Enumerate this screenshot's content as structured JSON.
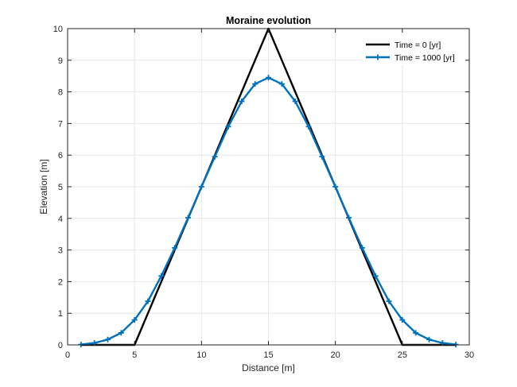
{
  "chart_data": {
    "type": "line",
    "title": "Moraine evolution",
    "xlabel": "Distance [m]",
    "ylabel": "Elevation [m]",
    "xlim": [
      0,
      30
    ],
    "ylim": [
      0,
      10
    ],
    "xticks": [
      0,
      5,
      10,
      15,
      20,
      25,
      30
    ],
    "yticks": [
      0,
      1,
      2,
      3,
      4,
      5,
      6,
      7,
      8,
      9,
      10
    ],
    "grid": true,
    "legend_placement": "top-right",
    "series": [
      {
        "name": "Time = 0 [yr]",
        "color": "#000000",
        "marker": "none",
        "x": [
          1,
          2,
          3,
          4,
          5,
          6,
          7,
          8,
          9,
          10,
          11,
          12,
          13,
          14,
          15,
          16,
          17,
          18,
          19,
          20,
          21,
          22,
          23,
          24,
          25,
          26,
          27,
          28,
          29
        ],
        "y": [
          0,
          0,
          0,
          0,
          0,
          1,
          2,
          3,
          4,
          5,
          6,
          7,
          8,
          9,
          10,
          9,
          8,
          7,
          6,
          5,
          4,
          3,
          2,
          1,
          0,
          0,
          0,
          0,
          0
        ]
      },
      {
        "name": "Time = 1000 [yr]",
        "color": "#0072BD",
        "marker": "plus",
        "x": [
          1,
          2,
          3,
          4,
          5,
          6,
          7,
          8,
          9,
          10,
          11,
          12,
          13,
          14,
          15,
          16,
          17,
          18,
          19,
          20,
          21,
          22,
          23,
          24,
          25,
          26,
          27,
          28,
          29
        ],
        "y": [
          0.01,
          0.06,
          0.17,
          0.38,
          0.79,
          1.38,
          2.18,
          3.07,
          4.02,
          5.0,
          5.95,
          6.9,
          7.7,
          8.25,
          8.45,
          8.25,
          7.7,
          6.9,
          5.95,
          5.0,
          4.02,
          3.07,
          2.18,
          1.38,
          0.79,
          0.38,
          0.17,
          0.06,
          0.01
        ]
      }
    ]
  }
}
